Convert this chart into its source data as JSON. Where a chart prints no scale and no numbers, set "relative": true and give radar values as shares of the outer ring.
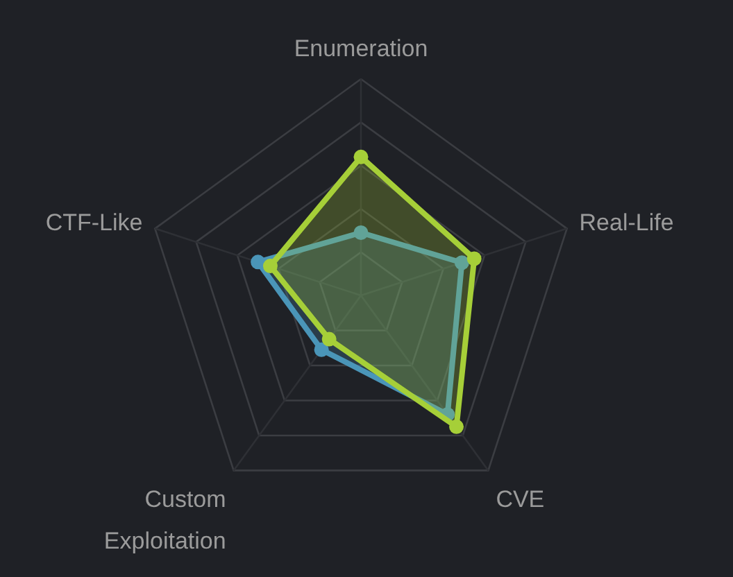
{
  "chart_data": {
    "type": "radar",
    "relative": true,
    "categories": [
      "Enumeration",
      "Real-Life",
      "CVE",
      "Custom Exploitation",
      "CTF-Like"
    ],
    "grid": true,
    "marker": "circle",
    "series": [
      {
        "color": "#4a95b8",
        "values": [
          0.29,
          0.49,
          0.68,
          0.31,
          0.5
        ]
      },
      {
        "color": "#a6cf38",
        "values": [
          0.64,
          0.55,
          0.75,
          0.25,
          0.44
        ]
      }
    ]
  }
}
